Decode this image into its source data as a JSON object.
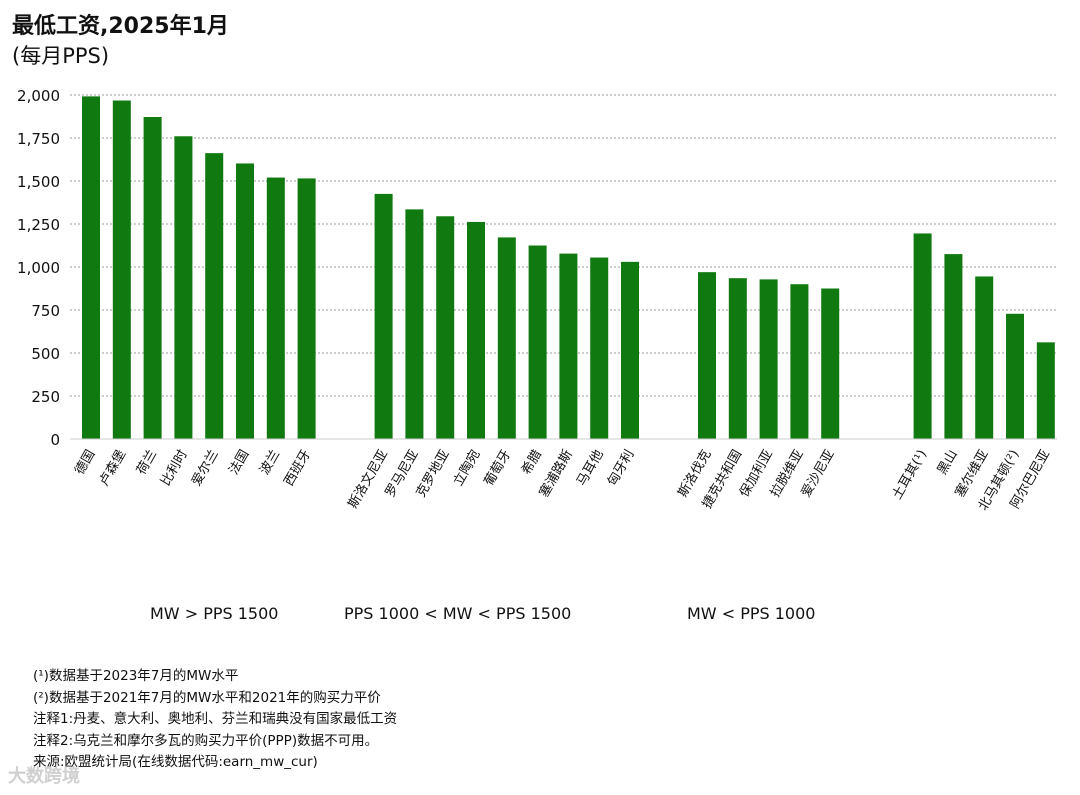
{
  "chart_data": {
    "type": "bar",
    "title": "最低工资,2025年1月",
    "subtitle": "(每月PPS)",
    "ylim": [
      0,
      2000
    ],
    "yticks": [
      0,
      250,
      500,
      750,
      1000,
      1250,
      1500,
      1750,
      2000
    ],
    "ytick_labels": [
      "0",
      "250",
      "500",
      "750",
      "1,000",
      "1,250",
      "1,500",
      "1,750",
      "2,000"
    ],
    "color": "#107a10",
    "groups": [
      {
        "label": "MW > PPS 1500",
        "categories": [
          "德国",
          "卢森堡",
          "荷兰",
          "比利时",
          "爱尔兰",
          "法国",
          "波兰",
          "西班牙"
        ],
        "values": [
          1992,
          1968,
          1872,
          1760,
          1662,
          1602,
          1520,
          1515
        ]
      },
      {
        "label": "PPS 1000 < MW < PPS 1500",
        "categories": [
          "斯洛文尼亚",
          "罗马尼亚",
          "克罗地亚",
          "立陶宛",
          "葡萄牙",
          "希腊",
          "塞浦路斯",
          "马耳他",
          "匈牙利"
        ],
        "values": [
          1425,
          1335,
          1295,
          1262,
          1172,
          1125,
          1078,
          1055,
          1030
        ]
      },
      {
        "label": "MW < PPS 1000",
        "categories": [
          "斯洛伐克",
          "捷克共和国",
          "保加利亚",
          "拉脱维亚",
          "爱沙尼亚"
        ],
        "values": [
          970,
          935,
          928,
          900,
          875
        ]
      },
      {
        "label": "",
        "categories": [
          "土耳其(¹)",
          "黑山",
          "塞尔维亚",
          "北马其顿(²)",
          "阿尔巴尼亚"
        ],
        "values": [
          1195,
          1075,
          945,
          728,
          562
        ]
      }
    ]
  },
  "notes": [
    "(¹)数据基于2023年7月的MW水平",
    "(²)数据基于2021年7月的MW水平和2021年的购买力平价",
    "注释1:丹麦、意大利、奥地利、芬兰和瑞典没有国家最低工资",
    "注释2:乌克兰和摩尔多瓦的购买力平价(PPP)数据不可用。",
    "来源:欧盟统计局(在线数据代码:earn_mw_cur)"
  ],
  "watermark": "大数跨境"
}
